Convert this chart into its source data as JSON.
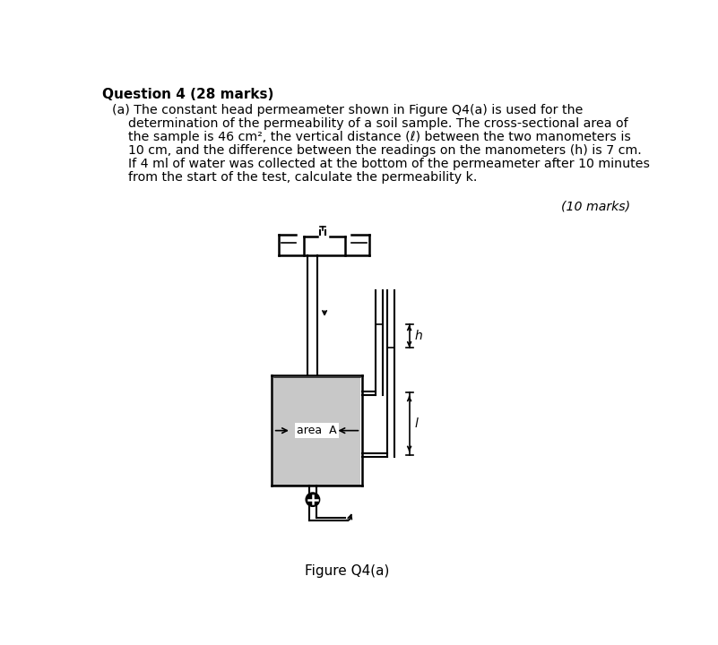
{
  "title_bold": "Question 4 (28 marks)",
  "body_lines": [
    "(a) The constant head permeameter shown in Figure Q4(a) is used for the",
    "    determination of the permeability of a soil sample. The cross-sectional area of",
    "    the sample is 46 cm², the vertical distance (ℓ) between the two manometers is",
    "    10 cm, and the difference between the readings on the manometers (h) is 7 cm.",
    "    If 4 ml of water was collected at the bottom of the permeameter after 10 minutes",
    "    from the start of the test, calculate the permeability k."
  ],
  "marks_note": "(10 marks)",
  "figure_caption": "Figure Q4(a)",
  "bg_color": "#ffffff",
  "text_color": "#000000",
  "lc": "#000000",
  "soil_fill_color": "#c8c8c8"
}
